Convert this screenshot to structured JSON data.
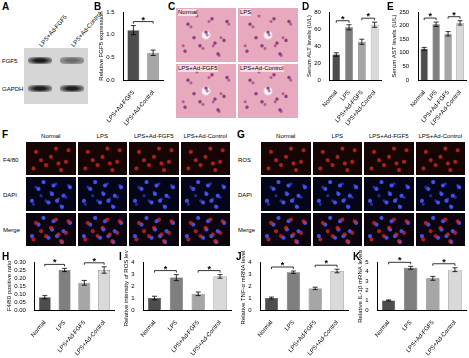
{
  "chart_data": [
    {
      "panel": "B",
      "type": "bar",
      "categories": [
        "LPS+Ad-FGF5",
        "LPS+Ad-Control"
      ],
      "values": [
        1.1,
        0.6
      ],
      "errors": [
        0.1,
        0.06
      ],
      "colors": [
        "#4d4d4d",
        "#a6a6a6"
      ],
      "ylabel": "Relative FGF5 expression",
      "ylim": [
        0,
        1.5
      ],
      "yticks": [
        {
          "value": 0,
          "label": "0.0"
        },
        {
          "value": 0.5,
          "label": "0.5"
        },
        {
          "value": 1,
          "label": "1.0"
        },
        {
          "value": 1.5,
          "label": "1.5"
        }
      ],
      "grid": false,
      "significance": [
        {
          "pair": [
            0,
            1
          ],
          "label": "*"
        }
      ]
    },
    {
      "panel": "D",
      "type": "bar",
      "categories": [
        "Normal",
        "LPS",
        "LPS+Ad-FGF5",
        "LPS+Ad-Control"
      ],
      "values": [
        30,
        62,
        45,
        65
      ],
      "errors": [
        2,
        3,
        3,
        3
      ],
      "colors": [
        "#4d4d4d",
        "#7f7f7f",
        "#a6a6a6",
        "#d9d9d9"
      ],
      "ylabel": "Serum ALT levels (U/L)",
      "ylim": [
        0,
        80
      ],
      "yticks": [
        0,
        20,
        40,
        60,
        80
      ],
      "grid": false,
      "significance": [
        {
          "pair": [
            0,
            1
          ],
          "label": "*"
        },
        {
          "pair": [
            2,
            3
          ],
          "label": "*"
        }
      ]
    },
    {
      "panel": "E",
      "type": "bar",
      "categories": [
        "Normal",
        "LPS",
        "LPS+Ad-FGF5",
        "LPS+Ad-Control"
      ],
      "values": [
        115,
        205,
        170,
        210
      ],
      "errors": [
        5,
        8,
        8,
        8
      ],
      "colors": [
        "#4d4d4d",
        "#7f7f7f",
        "#a6a6a6",
        "#d9d9d9"
      ],
      "ylabel": "Serum AST levels (U/L)",
      "ylim": [
        0,
        250
      ],
      "yticks": [
        0,
        50,
        100,
        150,
        200,
        250
      ],
      "grid": false,
      "significance": [
        {
          "pair": [
            0,
            1
          ],
          "label": "*"
        },
        {
          "pair": [
            2,
            3
          ],
          "label": "*"
        }
      ]
    },
    {
      "panel": "H",
      "type": "bar",
      "categories": [
        "Normal",
        "LPS",
        "LPS+Ad-FGF5",
        "LPS+Ad-Control"
      ],
      "values": [
        0.08,
        0.25,
        0.17,
        0.25
      ],
      "errors": [
        0.01,
        0.01,
        0.015,
        0.02
      ],
      "colors": [
        "#4d4d4d",
        "#7f7f7f",
        "#a6a6a6",
        "#d9d9d9"
      ],
      "ylabel": "F4/80 positive ratio",
      "ylim": [
        0,
        0.3
      ],
      "yticks": [
        {
          "value": 0,
          "label": "0.00"
        },
        {
          "value": 0.05,
          "label": "0.05"
        },
        {
          "value": 0.1,
          "label": "0.10"
        },
        {
          "value": 0.15,
          "label": "0.15"
        },
        {
          "value": 0.2,
          "label": "0.20"
        },
        {
          "value": 0.25,
          "label": "0.25"
        },
        {
          "value": 0.3,
          "label": "0.30"
        }
      ],
      "grid": false,
      "significance": [
        {
          "pair": [
            0,
            1
          ],
          "label": "*"
        },
        {
          "pair": [
            2,
            3
          ],
          "label": "*"
        }
      ]
    },
    {
      "panel": "I",
      "type": "bar",
      "categories": [
        "Normal",
        "LPS",
        "LPS+Ad-FGF5",
        "LPS+Ad-Control"
      ],
      "values": [
        1.0,
        2.7,
        1.35,
        2.8
      ],
      "errors": [
        0.15,
        0.25,
        0.15,
        0.15
      ],
      "colors": [
        "#4d4d4d",
        "#7f7f7f",
        "#a6a6a6",
        "#d9d9d9"
      ],
      "ylabel": "Relative intensity of ROS level",
      "ylim": [
        0,
        4
      ],
      "yticks": [
        0,
        1,
        2,
        3,
        4
      ],
      "grid": false,
      "significance": [
        {
          "pair": [
            0,
            1
          ],
          "label": "*"
        },
        {
          "pair": [
            2,
            3
          ],
          "label": "*"
        }
      ]
    },
    {
      "panel": "J",
      "type": "bar",
      "categories": [
        "Normal",
        "LPS",
        "LPS+Ad-FGF5",
        "LPS+Ad-Control"
      ],
      "values": [
        1.0,
        3.15,
        1.8,
        3.25
      ],
      "errors": [
        0.08,
        0.1,
        0.1,
        0.15
      ],
      "colors": [
        "#4d4d4d",
        "#7f7f7f",
        "#a6a6a6",
        "#d9d9d9"
      ],
      "ylabel": "Relative TNF-α mRNA levels",
      "ylim": [
        0,
        4
      ],
      "yticks": [
        0,
        1,
        2,
        3,
        4
      ],
      "grid": false,
      "significance": [
        {
          "pair": [
            0,
            1
          ],
          "label": "*"
        },
        {
          "pair": [
            2,
            3
          ],
          "label": "*"
        }
      ]
    },
    {
      "panel": "K",
      "type": "bar",
      "categories": [
        "Normal",
        "LPS",
        "LPS+Ad-FGF5",
        "LPS+Ad-Control"
      ],
      "values": [
        1.0,
        4.4,
        3.3,
        4.2
      ],
      "errors": [
        0.05,
        0.15,
        0.2,
        0.2
      ],
      "colors": [
        "#4d4d4d",
        "#7f7f7f",
        "#a6a6a6",
        "#d9d9d9"
      ],
      "ylabel": "Relative IL-1β mRNA levels",
      "ylim": [
        0,
        5
      ],
      "yticks": [
        0,
        1,
        2,
        3,
        4,
        5
      ],
      "grid": false,
      "significance": [
        {
          "pair": [
            0,
            1
          ],
          "label": "*"
        },
        {
          "pair": [
            2,
            3
          ],
          "label": "*"
        }
      ]
    }
  ],
  "image_panels": [
    {
      "panel": "A",
      "kind": "blot",
      "columns": [
        "LPS+Ad-FGF5",
        "LPS+Ad-Control"
      ],
      "rows": [
        "FGF5",
        "GAPDH"
      ]
    },
    {
      "panel": "C",
      "kind": "histology",
      "labels": [
        "Normal",
        "LPS",
        "LPS+Ad-FGF5",
        "LPS+Ad-Control"
      ]
    },
    {
      "panel": "F",
      "kind": "fluorescence",
      "columns": [
        "Normal",
        "LPS",
        "LPS+Ad-FGF5",
        "LPS+Ad-Control"
      ],
      "rows": [
        "F4/80",
        "DAPI",
        "Merge"
      ]
    },
    {
      "panel": "G",
      "kind": "fluorescence",
      "columns": [
        "Normal",
        "LPS",
        "LPS+Ad-FGF5",
        "LPS+Ad-Control"
      ],
      "rows": [
        "ROS",
        "DAPI",
        "Merge"
      ]
    }
  ]
}
